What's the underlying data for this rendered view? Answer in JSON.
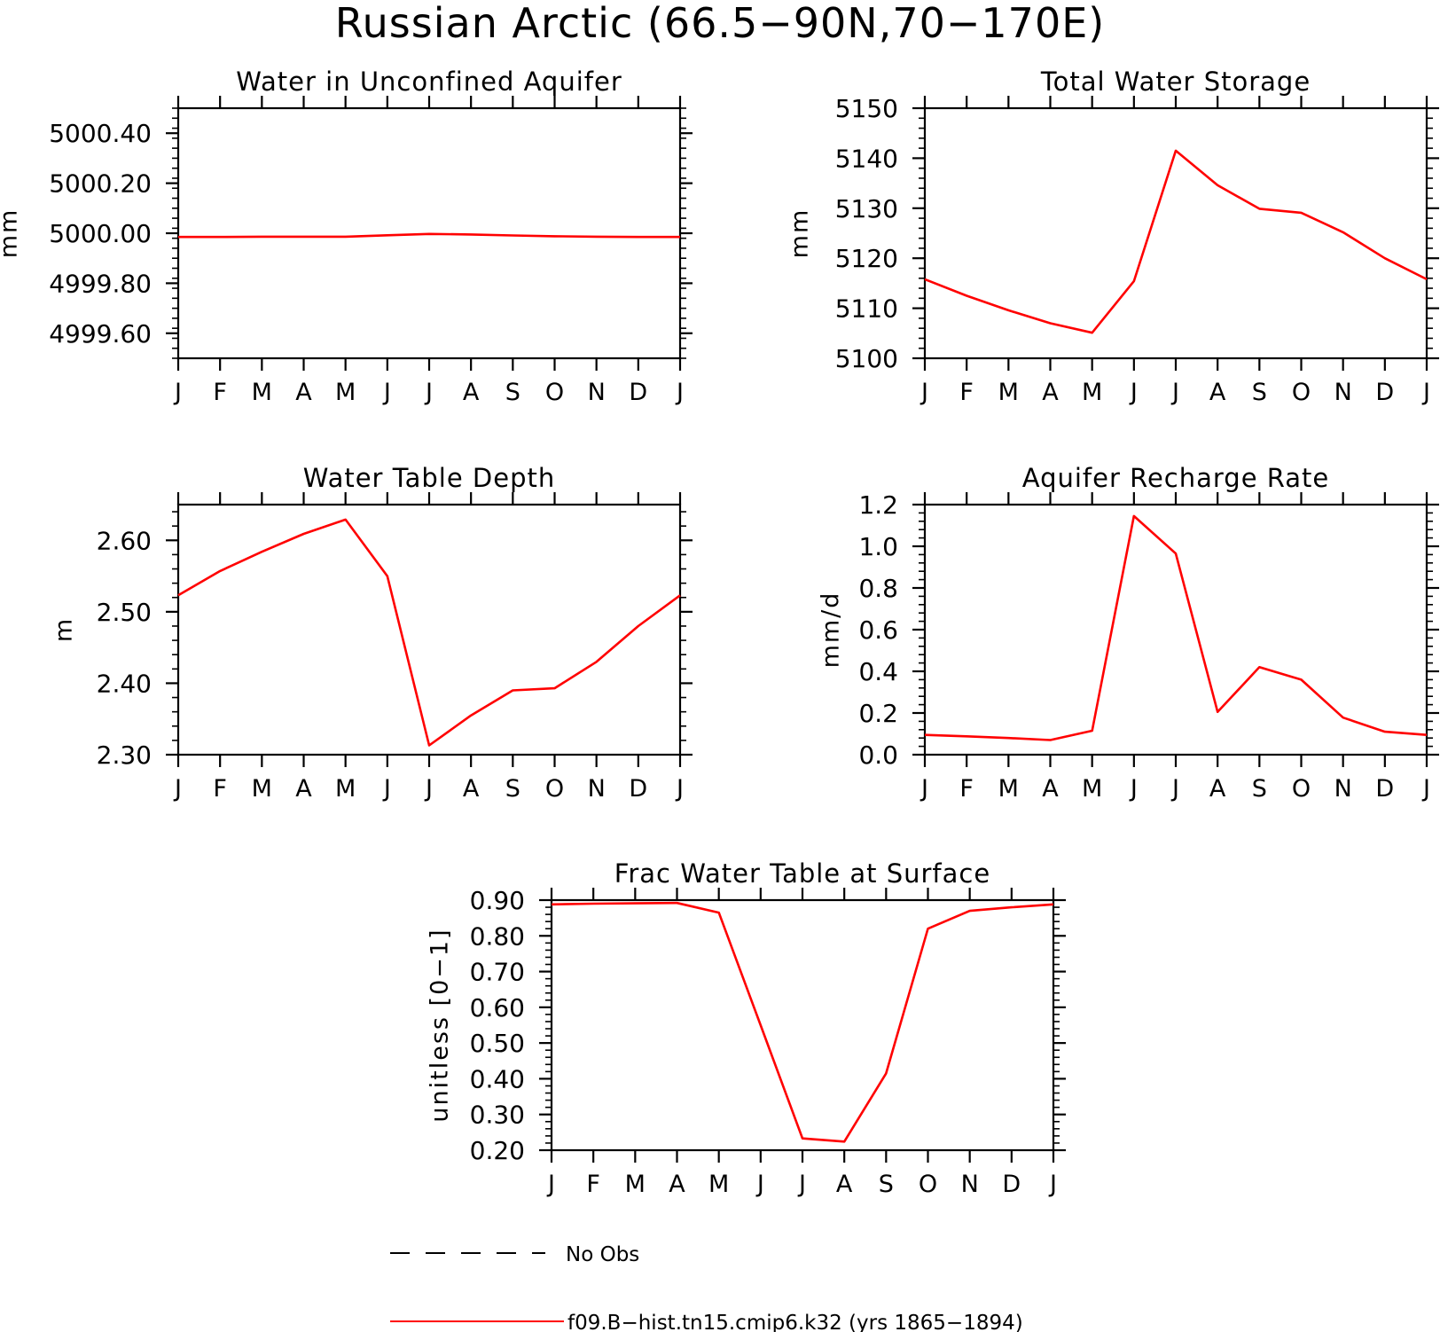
{
  "figure": {
    "title": "Russian Arctic (66.5−90N,70−170E)",
    "line_color": "#ff0000",
    "obs_color": "#000000"
  },
  "legend": {
    "obs_label": "No Obs",
    "model_label": "f09.B−hist.tn15.cmip6.k32 (yrs 1865−1894)"
  },
  "chart_data": [
    {
      "type": "line",
      "title": "Water in Unconfined Aquifer",
      "ylabel": "mm",
      "xlabel": "",
      "categories": [
        "J",
        "F",
        "M",
        "A",
        "M",
        "J",
        "J",
        "A",
        "S",
        "O",
        "N",
        "D",
        "J"
      ],
      "ylim": [
        4999.5,
        5000.5
      ],
      "yticks": [
        4999.6,
        4999.8,
        5000.0,
        5000.2,
        5000.4
      ],
      "ytick_labels": [
        "4999.60",
        "4999.80",
        "5000.00",
        "5000.20",
        "5000.40"
      ],
      "series": [
        {
          "values": [
            4999.985,
            4999.985,
            4999.986,
            4999.986,
            4999.986,
            4999.992,
            4999.997,
            4999.995,
            4999.991,
            4999.988,
            4999.986,
            4999.985,
            4999.985
          ]
        }
      ]
    },
    {
      "type": "line",
      "title": "Total Water Storage",
      "ylabel": "mm",
      "xlabel": "",
      "categories": [
        "J",
        "F",
        "M",
        "A",
        "M",
        "J",
        "J",
        "A",
        "S",
        "O",
        "N",
        "D",
        "J"
      ],
      "ylim": [
        5100,
        5150
      ],
      "yticks": [
        5100,
        5110,
        5120,
        5130,
        5140,
        5150
      ],
      "ytick_labels": [
        "5100",
        "5110",
        "5120",
        "5130",
        "5140",
        "5150"
      ],
      "series": [
        {
          "values": [
            5115.8,
            5112.5,
            5109.6,
            5107.0,
            5105.1,
            5115.4,
            5141.5,
            5134.6,
            5129.9,
            5129.1,
            5125.2,
            5120.0,
            5115.8
          ]
        }
      ]
    },
    {
      "type": "line",
      "title": "Water Table Depth",
      "ylabel": "m",
      "xlabel": "",
      "categories": [
        "J",
        "F",
        "M",
        "A",
        "M",
        "J",
        "J",
        "A",
        "S",
        "O",
        "N",
        "D",
        "J"
      ],
      "ylim": [
        2.3,
        2.65
      ],
      "yticks": [
        2.3,
        2.4,
        2.5,
        2.6
      ],
      "ytick_labels": [
        "2.30",
        "2.40",
        "2.50",
        "2.60"
      ],
      "series": [
        {
          "values": [
            2.523,
            2.557,
            2.584,
            2.609,
            2.629,
            2.55,
            2.313,
            2.355,
            2.39,
            2.393,
            2.43,
            2.48,
            2.523
          ]
        }
      ]
    },
    {
      "type": "line",
      "title": "Aquifer Recharge Rate",
      "ylabel": "mm/d",
      "xlabel": "",
      "categories": [
        "J",
        "F",
        "M",
        "A",
        "M",
        "J",
        "J",
        "A",
        "S",
        "O",
        "N",
        "D",
        "J"
      ],
      "ylim": [
        0.0,
        1.2
      ],
      "yticks": [
        0.0,
        0.2,
        0.4,
        0.6,
        0.8,
        1.0,
        1.2
      ],
      "ytick_labels": [
        "0.0",
        "0.2",
        "0.4",
        "0.6",
        "0.8",
        "1.0",
        "1.2"
      ],
      "series": [
        {
          "values": [
            0.095,
            0.088,
            0.08,
            0.07,
            0.115,
            1.145,
            0.965,
            0.205,
            0.42,
            0.36,
            0.178,
            0.11,
            0.095
          ]
        }
      ]
    },
    {
      "type": "line",
      "title": "Frac Water Table at Surface",
      "ylabel": "unitless [0−1]",
      "xlabel": "",
      "categories": [
        "J",
        "F",
        "M",
        "A",
        "M",
        "J",
        "J",
        "A",
        "S",
        "O",
        "N",
        "D",
        "J"
      ],
      "ylim": [
        0.2,
        0.9
      ],
      "yticks": [
        0.2,
        0.3,
        0.4,
        0.5,
        0.6,
        0.7,
        0.8,
        0.9
      ],
      "ytick_labels": [
        "0.20",
        "0.30",
        "0.40",
        "0.50",
        "0.60",
        "0.70",
        "0.80",
        "0.90"
      ],
      "series": [
        {
          "values": [
            0.888,
            0.89,
            0.891,
            0.892,
            0.865,
            0.55,
            0.233,
            0.224,
            0.415,
            0.82,
            0.87,
            0.88,
            0.888
          ]
        }
      ]
    }
  ]
}
